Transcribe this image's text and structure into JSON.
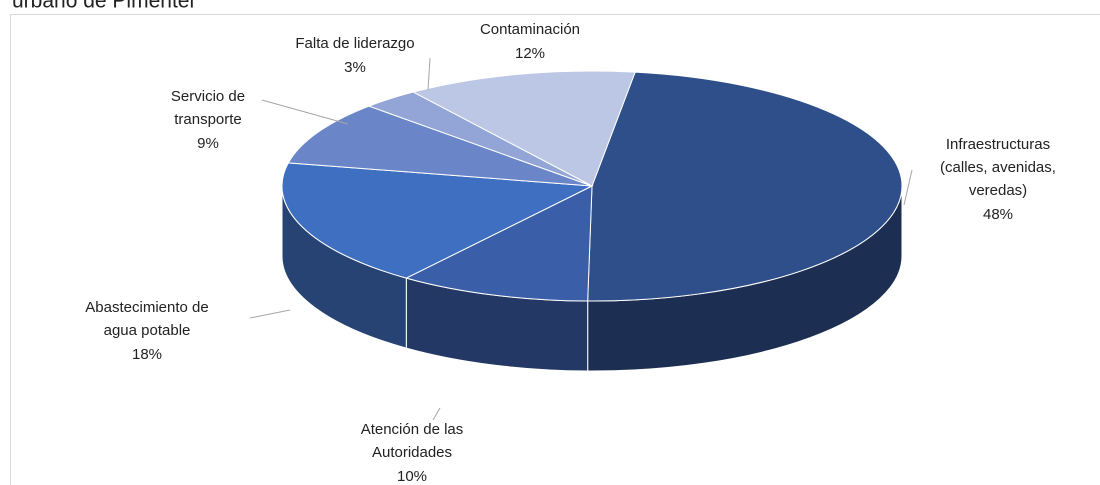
{
  "chart_data": {
    "type": "pie3d",
    "title": "urbano de Pimentel",
    "categories": [
      [
        "Infraestructuras",
        "(calles, avenidas,",
        "veredas)"
      ],
      [
        "Atención de las",
        "Autoridades"
      ],
      [
        "Abastecimiento de",
        "agua potable"
      ],
      [
        "Servicio de",
        "transporte"
      ],
      [
        "Falta de liderazgo"
      ],
      [
        "Contaminación"
      ]
    ],
    "values": [
      48,
      10,
      18,
      9,
      3,
      12
    ],
    "value_labels": [
      "48%",
      "10%",
      "18%",
      "9%",
      "3%",
      "12%"
    ],
    "colors": [
      "#2f4f8a",
      "#3a5ea8",
      "#3f6fc0",
      "#6a86c8",
      "#93a5d6",
      "#bcc7e6"
    ]
  }
}
